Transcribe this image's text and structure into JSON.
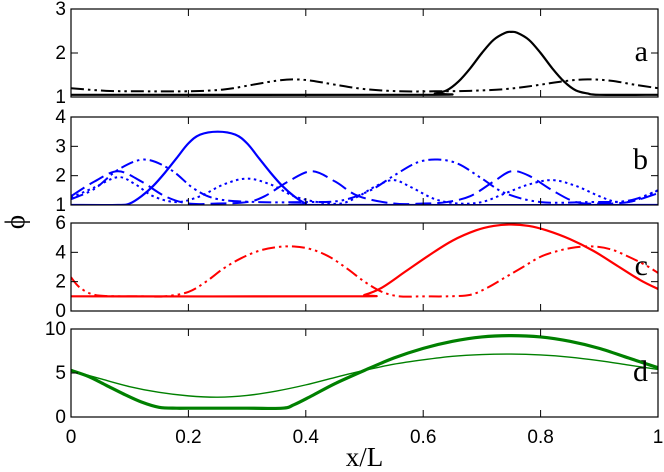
{
  "chart_data": {
    "type": "line",
    "xlabel": "x/L",
    "ylabel": "ϕ",
    "xlim": [
      0,
      1
    ],
    "x_ticks": [
      0,
      0.2,
      0.4,
      0.6,
      0.8,
      1
    ],
    "x_tick_labels": [
      "0",
      "0.2",
      "0.4",
      "0.6",
      "0.8",
      "1"
    ],
    "panels": [
      {
        "label": "a",
        "ylim": [
          1,
          3
        ],
        "y_ticks": [
          1,
          2,
          3
        ],
        "y_tick_labels": [
          "1",
          "2",
          "3"
        ],
        "series": [
          {
            "name": "a-solid",
            "style": "solid",
            "color": "#000000",
            "width": 2.2,
            "x": [
              0,
              0.6,
              0.62,
              0.64,
              0.66,
              0.68,
              0.7,
              0.72,
              0.74,
              0.75,
              0.76,
              0.78,
              0.8,
              0.82,
              0.84,
              0.86,
              0.88,
              0.9,
              1
            ],
            "y": [
              1.05,
              1.05,
              1.08,
              1.15,
              1.35,
              1.65,
              2.0,
              2.3,
              2.46,
              2.48,
              2.46,
              2.3,
              2.0,
              1.65,
              1.35,
              1.15,
              1.08,
              1.05,
              1.05
            ]
          },
          {
            "name": "a-dashdotdot",
            "style": "dashdotdot",
            "color": "#000000",
            "width": 2.0,
            "x": [
              0,
              0.06,
              0.12,
              0.2,
              0.26,
              0.31,
              0.35,
              0.38,
              0.41,
              0.45,
              0.5,
              0.56,
              0.62,
              0.68,
              0.74,
              0.79,
              0.84,
              0.88,
              0.92,
              0.96,
              1
            ],
            "y": [
              1.2,
              1.14,
              1.13,
              1.13,
              1.17,
              1.28,
              1.37,
              1.4,
              1.37,
              1.28,
              1.18,
              1.13,
              1.13,
              1.14,
              1.18,
              1.26,
              1.36,
              1.4,
              1.37,
              1.28,
              1.2
            ]
          }
        ]
      },
      {
        "label": "b",
        "ylim": [
          1,
          4
        ],
        "y_ticks": [
          1,
          2,
          3,
          4
        ],
        "y_tick_labels": [
          "1",
          "2",
          "3",
          "4"
        ],
        "series": [
          {
            "name": "b-solid",
            "style": "solid",
            "color": "#0000ff",
            "width": 2.2,
            "x": [
              0,
              0.08,
              0.1,
              0.12,
              0.14,
              0.16,
              0.18,
              0.2,
              0.22,
              0.25,
              0.28,
              0.3,
              0.32,
              0.34,
              0.36,
              0.38,
              0.4,
              0.42,
              1
            ],
            "y": [
              1.0,
              1.0,
              1.05,
              1.3,
              1.65,
              2.1,
              2.6,
              3.1,
              3.4,
              3.5,
              3.4,
              3.1,
              2.6,
              2.1,
              1.65,
              1.3,
              1.05,
              1.0,
              1.0
            ]
          },
          {
            "name": "b-longdash",
            "style": "longdash",
            "color": "#0000ff",
            "width": 2.0,
            "x": [
              0,
              0.04,
              0.08,
              0.12,
              0.16,
              0.2,
              0.25,
              0.3,
              0.33,
              0.37,
              0.41,
              0.45,
              0.49,
              0.55,
              0.6,
              0.64,
              0.68,
              0.72,
              0.75,
              0.78,
              0.82,
              0.86,
              0.9,
              0.95,
              1
            ],
            "y": [
              1.3,
              1.8,
              2.15,
              1.8,
              1.3,
              1.05,
              1.05,
              1.1,
              1.3,
              1.8,
              2.15,
              1.8,
              1.3,
              1.05,
              1.05,
              1.1,
              1.3,
              1.8,
              2.15,
              2.0,
              1.5,
              1.1,
              1.05,
              1.1,
              1.4
            ]
          },
          {
            "name": "b-dashdotdot",
            "style": "dashdotdot",
            "color": "#0000ff",
            "width": 2.0,
            "x": [
              0,
              0.04,
              0.08,
              0.125,
              0.17,
              0.21,
              0.25,
              0.32,
              0.4,
              0.46,
              0.51,
              0.55,
              0.59,
              0.625,
              0.66,
              0.7,
              0.74,
              0.8,
              0.88,
              0.95,
              1
            ],
            "y": [
              1.2,
              1.55,
              2.2,
              2.55,
              2.2,
              1.55,
              1.2,
              1.1,
              1.1,
              1.15,
              1.5,
              2.0,
              2.45,
              2.55,
              2.4,
              1.9,
              1.4,
              1.1,
              1.1,
              1.15,
              1.5
            ]
          },
          {
            "name": "b-dotted",
            "style": "dotted",
            "color": "#0000ff",
            "width": 2.0,
            "x": [
              0,
              0.04,
              0.08,
              0.11,
              0.14,
              0.18,
              0.22,
              0.26,
              0.3,
              0.34,
              0.38,
              0.42,
              0.46,
              0.49,
              0.52,
              0.55,
              0.58,
              0.62,
              0.66,
              0.7,
              0.74,
              0.78,
              0.82,
              0.86,
              0.9,
              0.93,
              0.96,
              1
            ],
            "y": [
              1.25,
              1.6,
              1.95,
              1.7,
              1.3,
              1.1,
              1.3,
              1.7,
              1.9,
              1.7,
              1.3,
              1.1,
              1.05,
              1.3,
              1.65,
              1.85,
              1.6,
              1.2,
              1.05,
              1.1,
              1.4,
              1.7,
              1.85,
              1.65,
              1.3,
              1.1,
              1.15,
              1.5
            ]
          }
        ]
      },
      {
        "label": "c",
        "ylim": [
          0,
          6
        ],
        "y_ticks": [
          0,
          2,
          4,
          6
        ],
        "y_tick_labels": [
          "0",
          "2",
          "4",
          "6"
        ],
        "series": [
          {
            "name": "c-solid",
            "style": "solid",
            "color": "#ff0000",
            "width": 2.2,
            "x": [
              0,
              0.48,
              0.5,
              0.53,
              0.57,
              0.61,
              0.65,
              0.69,
              0.72,
              0.75,
              0.78,
              0.81,
              0.85,
              0.89,
              0.93,
              0.97,
              1
            ],
            "y": [
              1.0,
              1.0,
              1.1,
              1.6,
              2.7,
              3.8,
              4.8,
              5.5,
              5.8,
              5.9,
              5.8,
              5.5,
              4.9,
              4.1,
              3.1,
              2.1,
              1.5
            ]
          },
          {
            "name": "c-dashdotdot",
            "style": "dashdotdot",
            "color": "#ff0000",
            "width": 2.0,
            "x": [
              0,
              0.015,
              0.04,
              0.08,
              0.12,
              0.16,
              0.2,
              0.23,
              0.26,
              0.29,
              0.32,
              0.35,
              0.38,
              0.41,
              0.44,
              0.47,
              0.5,
              0.53,
              0.56,
              0.6,
              0.64,
              0.68,
              0.71,
              0.74,
              0.77,
              0.8,
              0.83,
              0.86,
              0.89,
              0.92,
              0.95,
              0.98,
              1
            ],
            "y": [
              2.3,
              1.6,
              1.1,
              1.0,
              1.0,
              1.0,
              1.3,
              2.0,
              2.9,
              3.6,
              4.1,
              4.35,
              4.4,
              4.2,
              3.7,
              2.9,
              2.0,
              1.3,
              1.0,
              1.0,
              1.0,
              1.1,
              1.6,
              2.3,
              3.0,
              3.7,
              4.1,
              4.35,
              4.4,
              4.2,
              3.7,
              3.1,
              2.6
            ]
          }
        ]
      },
      {
        "label": "d",
        "ylim": [
          0,
          10
        ],
        "y_ticks": [
          0,
          5,
          10
        ],
        "y_tick_labels": [
          "0",
          "5",
          "10"
        ],
        "series": [
          {
            "name": "d-thick",
            "style": "solid",
            "color": "#008000",
            "width": 3.2,
            "x": [
              0,
              0.03,
              0.06,
              0.09,
              0.12,
              0.15,
              0.18,
              0.2,
              0.3,
              0.36,
              0.38,
              0.41,
              0.45,
              0.5,
              0.55,
              0.6,
              0.65,
              0.7,
              0.75,
              0.8,
              0.85,
              0.9,
              0.95,
              1
            ],
            "y": [
              5.3,
              4.6,
              3.6,
              2.6,
              1.7,
              1.1,
              1.0,
              1.0,
              1.0,
              1.0,
              1.4,
              2.4,
              3.8,
              5.3,
              6.7,
              7.8,
              8.6,
              9.1,
              9.25,
              9.1,
              8.6,
              7.8,
              6.7,
              5.6
            ]
          },
          {
            "name": "d-thin",
            "style": "solid",
            "color": "#008000",
            "width": 1.4,
            "x": [
              0,
              0.05,
              0.1,
              0.15,
              0.2,
              0.25,
              0.3,
              0.35,
              0.4,
              0.45,
              0.5,
              0.55,
              0.6,
              0.65,
              0.7,
              0.75,
              0.8,
              0.85,
              0.9,
              0.95,
              1
            ],
            "y": [
              5.3,
              4.35,
              3.45,
              2.8,
              2.4,
              2.25,
              2.45,
              2.95,
              3.65,
              4.5,
              5.3,
              6.0,
              6.5,
              6.9,
              7.1,
              7.15,
              7.05,
              6.8,
              6.4,
              5.9,
              5.4
            ]
          }
        ]
      }
    ]
  }
}
